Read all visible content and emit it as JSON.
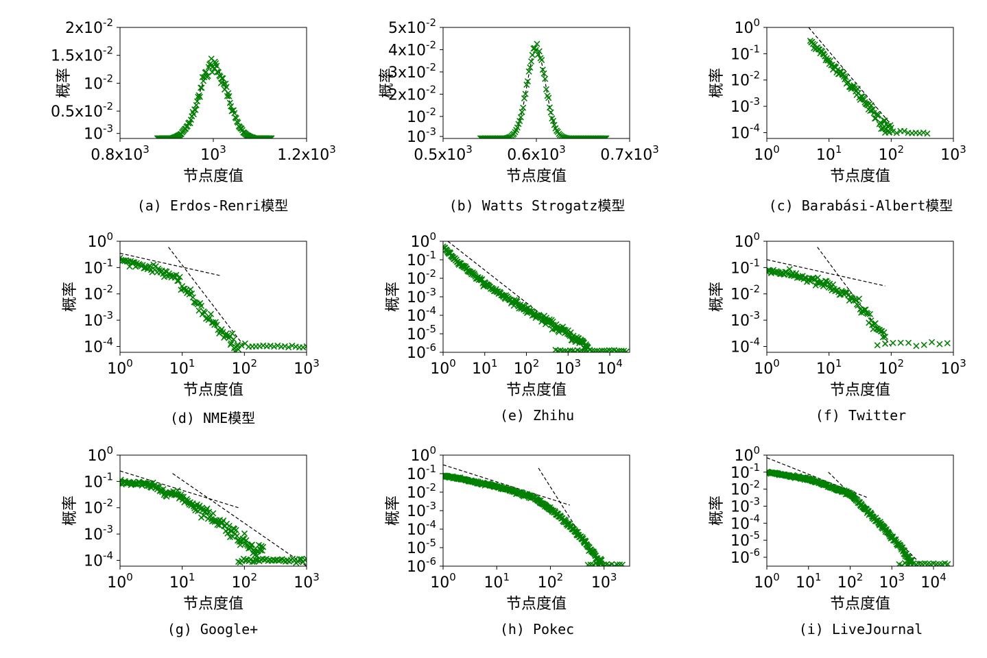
{
  "figure": {
    "marker_color": "#008000",
    "fit_color": "#000000",
    "background": "#ffffff"
  },
  "chart_data": [
    {
      "id": "a",
      "type": "scatter",
      "caption": "(a) Erdos-Renri模型",
      "xlabel": "节点度值",
      "ylabel": "概率",
      "xscale": "linear",
      "yscale": "linear",
      "xlim": [
        800,
        1200
      ],
      "ylim": [
        0.0001,
        0.02
      ],
      "xticks": [
        800,
        1000,
        1200
      ],
      "xticklabels": [
        [
          "0.8x10",
          "3"
        ],
        [
          "10",
          "3"
        ],
        [
          "1.2x10",
          "3"
        ]
      ],
      "yticks": [
        0.001,
        0.005,
        0.01,
        0.015,
        0.02
      ],
      "yticklabels": [
        [
          "10",
          "-3"
        ],
        [
          "0.5x10",
          "-2"
        ],
        [
          "10",
          "-2"
        ],
        [
          "1.5x10",
          "-2"
        ],
        [
          "2x10",
          "-2"
        ]
      ],
      "marker": "x",
      "series": [
        {
          "kind": "gaussian",
          "mu": 1000,
          "sigma": 30,
          "amp": 0.0133,
          "xmin": 880,
          "xmax": 1125,
          "n": 130,
          "jitter": 0.06
        }
      ],
      "fits": [
        {
          "kind": "gaussian",
          "mu": 1000,
          "sigma": 30,
          "amp": 0.0133,
          "xmin": 880,
          "xmax": 1125
        }
      ]
    },
    {
      "id": "b",
      "type": "scatter",
      "caption": "(b) Watts Strogatz模型",
      "xlabel": "节点度值",
      "ylabel": "概率",
      "xscale": "linear",
      "yscale": "linear",
      "xlim": [
        500,
        700
      ],
      "ylim": [
        0.0001,
        0.05
      ],
      "xticks": [
        500,
        600,
        700
      ],
      "xticklabels": [
        [
          "0.5x10",
          "3"
        ],
        [
          "0.6x10",
          "3"
        ],
        [
          "0.7x10",
          "3"
        ]
      ],
      "yticks": [
        0.001,
        0.01,
        0.02,
        0.03,
        0.04,
        0.05
      ],
      "yticklabels": [
        [
          "10",
          "-3"
        ],
        [
          "10",
          "-2"
        ],
        [
          "2x10",
          "-2"
        ],
        [
          "3x10",
          "-2"
        ],
        [
          "4x10",
          "-2"
        ],
        [
          "5x10",
          "-2"
        ]
      ],
      "marker": "x",
      "series": [
        {
          "kind": "gaussian",
          "mu": 600,
          "sigma": 10,
          "amp": 0.04,
          "xmin": 540,
          "xmax": 675,
          "n": 110,
          "jitter": 0.04
        }
      ],
      "fits": [
        {
          "kind": "gaussian",
          "mu": 600,
          "sigma": 10,
          "amp": 0.04,
          "xmin": 540,
          "xmax": 675
        }
      ]
    },
    {
      "id": "c",
      "type": "scatter",
      "caption": "(c) Barabási-Albert模型",
      "xlabel": "节点度值",
      "ylabel": "概率",
      "xscale": "log",
      "yscale": "log",
      "xlim": [
        1,
        1000
      ],
      "ylim": [
        6e-05,
        1
      ],
      "xticks": [
        1,
        10,
        100,
        1000
      ],
      "xticklabels": [
        [
          "10",
          "0"
        ],
        [
          "10",
          "1"
        ],
        [
          "10",
          "2"
        ],
        [
          "10",
          "3"
        ]
      ],
      "yticks": [
        0.0001,
        0.001,
        0.01,
        0.1,
        1
      ],
      "yticklabels": [
        [
          "10",
          "-4"
        ],
        [
          "10",
          "-3"
        ],
        [
          "10",
          "-2"
        ],
        [
          "10",
          "-1"
        ],
        [
          "10",
          "0"
        ]
      ],
      "marker": "x",
      "series": [
        {
          "kind": "powerlaw",
          "anchors": [
            [
              5,
              0.3
            ],
            [
              10,
              0.05
            ],
            [
              30,
              0.003
            ],
            [
              60,
              0.0004
            ],
            [
              100,
              0.00015
            ]
          ],
          "xmin": 5,
          "xmax": 100,
          "n": 90,
          "jitter": 0.35,
          "floor": {
            "y": 0.0001,
            "xmin": 80,
            "xmax": 380,
            "n": 12
          }
        }
      ],
      "fits": [
        {
          "kind": "line",
          "points": [
            [
              4.7,
              1.0
            ],
            [
              100,
              0.0002
            ]
          ]
        }
      ]
    },
    {
      "id": "d",
      "type": "scatter",
      "caption": "(d) NME模型",
      "xlabel": "节点度值",
      "ylabel": "概率",
      "xscale": "log",
      "yscale": "log",
      "xlim": [
        1,
        1000
      ],
      "ylim": [
        6e-05,
        1
      ],
      "xticks": [
        1,
        10,
        100,
        1000
      ],
      "xticklabels": [
        [
          "10",
          "0"
        ],
        [
          "10",
          "1"
        ],
        [
          "10",
          "2"
        ],
        [
          "10",
          "3"
        ]
      ],
      "yticks": [
        0.0001,
        0.001,
        0.01,
        0.1,
        1
      ],
      "yticklabels": [
        [
          "10",
          "-4"
        ],
        [
          "10",
          "-3"
        ],
        [
          "10",
          "-2"
        ],
        [
          "10",
          "-1"
        ],
        [
          "10",
          "0"
        ]
      ],
      "marker": "x",
      "series": [
        {
          "kind": "powerlaw",
          "anchors": [
            [
              1,
              0.2
            ],
            [
              3,
              0.1
            ],
            [
              6,
              0.06
            ],
            [
              10,
              0.02
            ],
            [
              20,
              0.003
            ],
            [
              40,
              0.0004
            ],
            [
              80,
              0.0001
            ]
          ],
          "xmin": 1,
          "xmax": 80,
          "n": 100,
          "jitter": 0.3,
          "floor": {
            "y": 0.0001,
            "xmin": 60,
            "xmax": 1000,
            "n": 22
          }
        }
      ],
      "fits": [
        {
          "kind": "line",
          "points": [
            [
              1,
              0.35
            ],
            [
              40,
              0.05
            ]
          ]
        },
        {
          "kind": "line",
          "points": [
            [
              6,
              0.6
            ],
            [
              100,
              0.0001
            ]
          ]
        }
      ]
    },
    {
      "id": "e",
      "type": "scatter",
      "caption": "(e) Zhihu",
      "xlabel": "节点度值",
      "ylabel": "概率",
      "xscale": "log",
      "yscale": "log",
      "xlim": [
        1,
        30000
      ],
      "ylim": [
        1e-06,
        1
      ],
      "xticks": [
        1,
        10,
        100,
        1000,
        10000
      ],
      "xticklabels": [
        [
          "10",
          "0"
        ],
        [
          "10",
          "1"
        ],
        [
          "10",
          "2"
        ],
        [
          "10",
          "3"
        ],
        [
          "10",
          "4"
        ]
      ],
      "yticks": [
        1e-06,
        1e-05,
        0.0001,
        0.001,
        0.01,
        0.1,
        1
      ],
      "yticklabels": [
        [
          "10",
          "-6"
        ],
        [
          "10",
          "-5"
        ],
        [
          "10",
          "-4"
        ],
        [
          "10",
          "-3"
        ],
        [
          "10",
          "-2"
        ],
        [
          "10",
          "-1"
        ],
        [
          "10",
          "0"
        ]
      ],
      "marker": "x",
      "series": [
        {
          "kind": "powerlaw",
          "anchors": [
            [
              1,
              0.5
            ],
            [
              2,
              0.1
            ],
            [
              10,
              0.005
            ],
            [
              100,
              0.0002
            ],
            [
              1000,
              1e-05
            ],
            [
              3000,
              2e-06
            ]
          ],
          "xmin": 1,
          "xmax": 3000,
          "n": 220,
          "jitter": 0.25,
          "floor": {
            "y": 1.2e-06,
            "xmin": 500,
            "xmax": 25000,
            "n": 30
          }
        }
      ],
      "fits": [
        {
          "kind": "line",
          "points": [
            [
              1.3,
              1.0
            ],
            [
              3300,
              1e-06
            ]
          ]
        }
      ]
    },
    {
      "id": "f",
      "type": "scatter",
      "caption": "(f) Twitter",
      "xlabel": "节点度值",
      "ylabel": "概率",
      "xscale": "log",
      "yscale": "log",
      "xlim": [
        1,
        1000
      ],
      "ylim": [
        6e-05,
        1
      ],
      "xticks": [
        1,
        10,
        100,
        1000
      ],
      "xticklabels": [
        [
          "10",
          "0"
        ],
        [
          "10",
          "1"
        ],
        [
          "10",
          "2"
        ],
        [
          "10",
          "3"
        ]
      ],
      "yticks": [
        0.0001,
        0.001,
        0.01,
        0.1,
        1
      ],
      "yticklabels": [
        [
          "10",
          "-4"
        ],
        [
          "10",
          "-3"
        ],
        [
          "10",
          "-2"
        ],
        [
          "10",
          "-1"
        ],
        [
          "10",
          "0"
        ]
      ],
      "marker": "x",
      "series": [
        {
          "kind": "powerlaw",
          "anchors": [
            [
              1,
              0.08
            ],
            [
              3,
              0.05
            ],
            [
              10,
              0.02
            ],
            [
              30,
              0.004
            ],
            [
              50,
              0.0008
            ],
            [
              80,
              0.0002
            ]
          ],
          "xmin": 1,
          "xmax": 80,
          "n": 110,
          "jitter": 0.3,
          "floor": {
            "y": 0.00012,
            "xmin": 60,
            "xmax": 800,
            "n": 10
          }
        }
      ],
      "fits": [
        {
          "kind": "line",
          "points": [
            [
              1,
              0.2
            ],
            [
              80,
              0.02
            ]
          ]
        },
        {
          "kind": "line",
          "points": [
            [
              6.5,
              0.6
            ],
            [
              100,
              0.0001
            ]
          ]
        }
      ]
    },
    {
      "id": "g",
      "type": "scatter",
      "caption": "(g) Google+",
      "xlabel": "节点度值",
      "ylabel": "概率",
      "xscale": "log",
      "yscale": "log",
      "xlim": [
        1,
        1000
      ],
      "ylim": [
        6e-05,
        1
      ],
      "xticks": [
        1,
        10,
        100,
        1000
      ],
      "xticklabels": [
        [
          "10",
          "0"
        ],
        [
          "10",
          "1"
        ],
        [
          "10",
          "2"
        ],
        [
          "10",
          "3"
        ]
      ],
      "yticks": [
        0.0001,
        0.001,
        0.01,
        0.1,
        1
      ],
      "yticklabels": [
        [
          "10",
          "-4"
        ],
        [
          "10",
          "-3"
        ],
        [
          "10",
          "-2"
        ],
        [
          "10",
          "-1"
        ],
        [
          "10",
          "0"
        ]
      ],
      "marker": "x",
      "series": [
        {
          "kind": "powerlaw",
          "anchors": [
            [
              1,
              0.1
            ],
            [
              3,
              0.07
            ],
            [
              10,
              0.025
            ],
            [
              50,
              0.002
            ],
            [
              100,
              0.0005
            ],
            [
              200,
              0.0002
            ]
          ],
          "xmin": 1,
          "xmax": 200,
          "n": 170,
          "jitter": 0.3,
          "floor": {
            "y": 0.0001,
            "xmin": 80,
            "xmax": 1000,
            "n": 40
          }
        }
      ],
      "fits": [
        {
          "kind": "line",
          "points": [
            [
              1,
              0.25
            ],
            [
              80,
              0.01
            ]
          ]
        },
        {
          "kind": "line",
          "points": [
            [
              7,
              0.2
            ],
            [
              1000,
              6e-05
            ]
          ]
        }
      ]
    },
    {
      "id": "h",
      "type": "scatter",
      "caption": "(h) Pokec",
      "xlabel": "节点度值",
      "ylabel": "概率",
      "xscale": "log",
      "yscale": "log",
      "xlim": [
        1,
        3000
      ],
      "ylim": [
        1e-06,
        1
      ],
      "xticks": [
        1,
        10,
        100,
        1000
      ],
      "xticklabels": [
        [
          "10",
          "0"
        ],
        [
          "10",
          "1"
        ],
        [
          "10",
          "2"
        ],
        [
          "10",
          "3"
        ]
      ],
      "yticks": [
        1e-06,
        1e-05,
        0.0001,
        0.001,
        0.01,
        0.1,
        1
      ],
      "yticklabels": [
        [
          "10",
          "-6"
        ],
        [
          "10",
          "-5"
        ],
        [
          "10",
          "-4"
        ],
        [
          "10",
          "-3"
        ],
        [
          "10",
          "-2"
        ],
        [
          "10",
          "-1"
        ],
        [
          "10",
          "0"
        ]
      ],
      "marker": "x",
      "series": [
        {
          "kind": "powerlaw",
          "anchors": [
            [
              1,
              0.08
            ],
            [
              10,
              0.02
            ],
            [
              50,
              0.005
            ],
            [
              150,
              0.0005
            ],
            [
              400,
              3e-05
            ],
            [
              800,
              2e-06
            ]
          ],
          "xmin": 1,
          "xmax": 900,
          "n": 300,
          "jitter": 0.15,
          "floor": {
            "y": 1.2e-06,
            "xmin": 500,
            "xmax": 2200,
            "n": 14
          }
        }
      ],
      "fits": [
        {
          "kind": "line",
          "points": [
            [
              1,
              0.3
            ],
            [
              230,
              0.002
            ]
          ]
        },
        {
          "kind": "line",
          "points": [
            [
              60,
              0.2
            ],
            [
              850,
              1e-06
            ]
          ]
        }
      ]
    },
    {
      "id": "i",
      "type": "scatter",
      "caption": "(i) LiveJournal",
      "xlabel": "节点度值",
      "ylabel": "概率",
      "xscale": "log",
      "yscale": "log",
      "xlim": [
        1,
        30000
      ],
      "ylim": [
        3e-07,
        1
      ],
      "xticks": [
        1,
        10,
        100,
        1000,
        10000
      ],
      "xticklabels": [
        [
          "10",
          "0"
        ],
        [
          "10",
          "1"
        ],
        [
          "10",
          "2"
        ],
        [
          "10",
          "3"
        ],
        [
          "10",
          "4"
        ]
      ],
      "yticks": [
        1e-06,
        1e-05,
        0.0001,
        0.001,
        0.01,
        0.1,
        1
      ],
      "yticklabels": [
        [
          "10",
          "-6"
        ],
        [
          "10",
          "-5"
        ],
        [
          "10",
          "-4"
        ],
        [
          "10",
          "-3"
        ],
        [
          "10",
          "-2"
        ],
        [
          "10",
          "-1"
        ],
        [
          "10",
          "0"
        ]
      ],
      "marker": "x",
      "series": [
        {
          "kind": "powerlaw",
          "anchors": [
            [
              1,
              0.1
            ],
            [
              10,
              0.04
            ],
            [
              100,
              0.005
            ],
            [
              500,
              0.0001
            ],
            [
              1500,
              5e-06
            ],
            [
              3000,
              5e-07
            ]
          ],
          "xmin": 1,
          "xmax": 3000,
          "n": 300,
          "jitter": 0.15,
          "floor": {
            "y": 4e-07,
            "xmin": 1500,
            "xmax": 22000,
            "n": 18
          }
        }
      ],
      "fits": [
        {
          "kind": "line",
          "points": [
            [
              1,
              0.7
            ],
            [
              250,
              0.0033
            ]
          ]
        },
        {
          "kind": "line",
          "points": [
            [
              30,
              0.1
            ],
            [
              5000,
              4e-07
            ]
          ]
        }
      ]
    }
  ]
}
